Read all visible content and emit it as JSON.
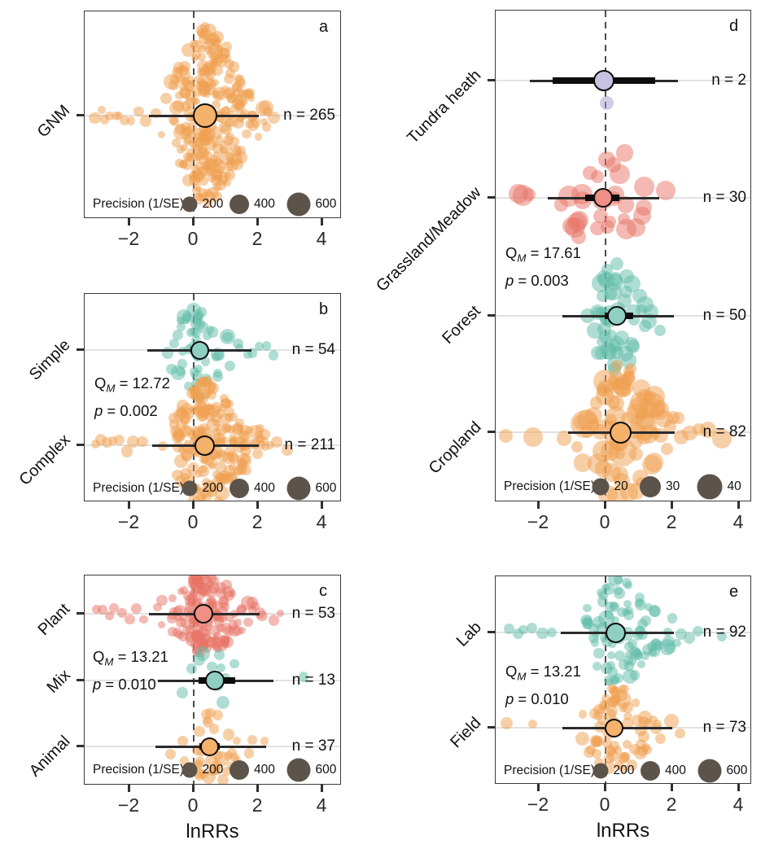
{
  "axis": {
    "xlabel": "lnRRs",
    "x_ticks": [
      "−2",
      "0",
      "2",
      "4"
    ],
    "x_tick_values": [
      -2,
      0,
      2,
      4
    ]
  },
  "colors": {
    "orange": {
      "dot": "#F0A050",
      "summary": "#F5B26B"
    },
    "teal": {
      "dot": "#5FBCA8",
      "summary": "#8FD0C2"
    },
    "salmon": {
      "dot": "#E87365",
      "summary": "#EF8F85"
    },
    "lavender": {
      "dot": "#A19CCF",
      "summary": "#C6C3E2"
    },
    "legend_circle": "#5C544B",
    "interval_line": "#2b2b2b",
    "zero_line": "#4c4c4c"
  },
  "chart_data": [
    {
      "panel": "a",
      "type": "scatter",
      "xlim": [
        -3.4,
        4.6
      ],
      "x_ticks": [
        -2,
        0,
        2,
        4
      ],
      "stats": null,
      "precision_legend": {
        "title": "Precision (1/SE)",
        "labels": [
          "200",
          "400",
          "600"
        ]
      },
      "groups": [
        {
          "label": "GNM",
          "n_text": "n = 265",
          "n": 265,
          "color": "orange",
          "mean": 0.35,
          "ci": [
            0.12,
            0.58
          ],
          "pi": [
            -1.38,
            2.02
          ],
          "swarm": {
            "mode": 0.45,
            "sd": 0.62,
            "outliers": [
              -3.05,
              -2.9,
              -2.75,
              -2.6,
              -2.45,
              -2.32,
              -2.18,
              -1.98,
              -1.72,
              -1.5,
              2.32,
              2.5
            ]
          }
        }
      ]
    },
    {
      "panel": "b",
      "type": "scatter",
      "xlim": [
        -3.4,
        4.6
      ],
      "x_ticks": [
        -2,
        0,
        2,
        4
      ],
      "stats": {
        "qm": "12.72",
        "p": "0.002"
      },
      "precision_legend": {
        "title": "Precision (1/SE)",
        "labels": [
          "200",
          "400",
          "600"
        ]
      },
      "groups": [
        {
          "label": "Simple",
          "n_text": "n = 54",
          "n": 54,
          "color": "teal",
          "mean": 0.18,
          "ci": [
            -0.1,
            0.46
          ],
          "pi": [
            -1.45,
            1.8
          ],
          "swarm": {
            "mode": 0.2,
            "sd": 0.5,
            "outliers": [
              1.85,
              2.05,
              2.3,
              2.5
            ]
          }
        },
        {
          "label": "Complex",
          "n_text": "n = 211",
          "n": 211,
          "color": "orange",
          "mean": 0.35,
          "ci": [
            0.18,
            0.52
          ],
          "pi": [
            -1.28,
            2.02
          ],
          "swarm": {
            "mode": 0.4,
            "sd": 0.62,
            "outliers": [
              -3.05,
              -2.88,
              -2.7,
              -2.52,
              -2.3,
              -2.1,
              -1.88,
              -1.62,
              2.35,
              2.6,
              2.9
            ]
          }
        }
      ]
    },
    {
      "panel": "c",
      "type": "scatter",
      "xlim": [
        -3.4,
        4.6
      ],
      "x_ticks": [
        -2,
        0,
        2,
        4
      ],
      "xlabel": "lnRRs",
      "stats": {
        "qm": "13.21",
        "p": "0.010"
      },
      "precision_legend": {
        "title": "Precision (1/SE)",
        "labels": [
          "200",
          "400",
          "600"
        ]
      },
      "groups": [
        {
          "label": "Plant",
          "n_text": "n = 53",
          "n": 53,
          "color": "salmon",
          "mean": 0.3,
          "ci": [
            0.1,
            0.5
          ],
          "pi": [
            -1.4,
            2.05
          ],
          "swarm": {
            "mode": 0.35,
            "sd": 0.6,
            "outliers": [
              -3.0,
              -2.85,
              -2.62,
              -2.45,
              -2.25,
              -2.02,
              -1.78,
              -1.52,
              2.5,
              2.72
            ]
          }
        },
        {
          "label": "Mix",
          "n_text": "n = 13",
          "n": 13,
          "color": "teal",
          "mean": 0.65,
          "ci": [
            0.15,
            1.28
          ],
          "pi": [
            -1.12,
            2.48
          ],
          "swarm": {
            "mode": 0.55,
            "sd": 0.5,
            "outliers": [
              3.45
            ]
          }
        },
        {
          "label": "Animal",
          "n_text": "n = 37",
          "n": 37,
          "color": "orange",
          "mean": 0.5,
          "ci": [
            0.18,
            0.82
          ],
          "pi": [
            -1.2,
            2.25
          ],
          "swarm": {
            "mode": 0.62,
            "sd": 0.55,
            "outliers": [
              2.2
            ]
          }
        }
      ]
    },
    {
      "panel": "d",
      "type": "scatter",
      "xlim": [
        -3.3,
        4.4
      ],
      "x_ticks": [
        -2,
        0,
        2,
        4
      ],
      "stats": {
        "qm": "17.61",
        "p": "0.003"
      },
      "precision_legend": {
        "title": "Precision (1/SE)",
        "labels": [
          "20",
          "30",
          "40"
        ]
      },
      "groups": [
        {
          "label": "Tundra heath",
          "n_text": "n = 2",
          "n": 2,
          "color": "lavender",
          "mean": -0.05,
          "ci": [
            -1.58,
            1.48
          ],
          "pi": [
            -2.28,
            2.18
          ],
          "swarm": {
            "points": [
              [
                0.03,
                27,
                17
              ]
            ]
          }
        },
        {
          "label": "Grassland/Meadow",
          "n_text": "n = 30",
          "n": 30,
          "color": "salmon",
          "mean": -0.08,
          "ci": [
            -0.62,
            0.42
          ],
          "pi": [
            -1.72,
            1.6
          ],
          "swarm": {
            "mode": -0.05,
            "sd": 0.72,
            "outliers": [
              -2.62,
              -2.45,
              -2.28
            ]
          }
        },
        {
          "label": "Forest",
          "n_text": "n = 50",
          "n": 50,
          "color": "teal",
          "mean": 0.35,
          "ci": [
            -0.02,
            0.82
          ],
          "pi": [
            -1.3,
            2.05
          ],
          "swarm": {
            "mode": 0.4,
            "sd": 0.55,
            "outliers": []
          }
        },
        {
          "label": "Cropland",
          "n_text": "n = 82",
          "n": 82,
          "color": "orange",
          "mean": 0.45,
          "ci": [
            0.28,
            0.64
          ],
          "pi": [
            -1.12,
            2.08
          ],
          "swarm": {
            "mode": 0.45,
            "sd": 0.68,
            "outliers": [
              -3.0,
              -2.2,
              2.5,
              2.8,
              3.1,
              3.5
            ]
          }
        }
      ]
    },
    {
      "panel": "e",
      "type": "scatter",
      "xlim": [
        -3.3,
        4.4
      ],
      "x_ticks": [
        -2,
        0,
        2,
        4
      ],
      "xlabel": "lnRRs",
      "stats": {
        "qm": "13.21",
        "p": "0.010"
      },
      "precision_legend": {
        "title": "Precision (1/SE)",
        "labels": [
          "200",
          "400",
          "600"
        ]
      },
      "groups": [
        {
          "label": "Lab",
          "n_text": "n = 92",
          "n": 92,
          "color": "teal",
          "mean": 0.3,
          "ci": [
            0.1,
            0.52
          ],
          "pi": [
            -1.35,
            2.05
          ],
          "swarm": {
            "mode": 0.45,
            "sd": 0.6,
            "outliers": [
              -2.9,
              -2.62,
              -2.45,
              -2.2,
              -1.92,
              -1.62,
              2.3,
              2.52,
              2.8,
              3.5
            ]
          }
        },
        {
          "label": "Field",
          "n_text": "n = 73",
          "n": 73,
          "color": "orange",
          "mean": 0.25,
          "ci": [
            0.05,
            0.46
          ],
          "pi": [
            -1.3,
            2.0
          ],
          "swarm": {
            "mode": 0.35,
            "sd": 0.55,
            "outliers": [
              -3.0,
              -2.2,
              2.2
            ]
          }
        }
      ]
    }
  ]
}
